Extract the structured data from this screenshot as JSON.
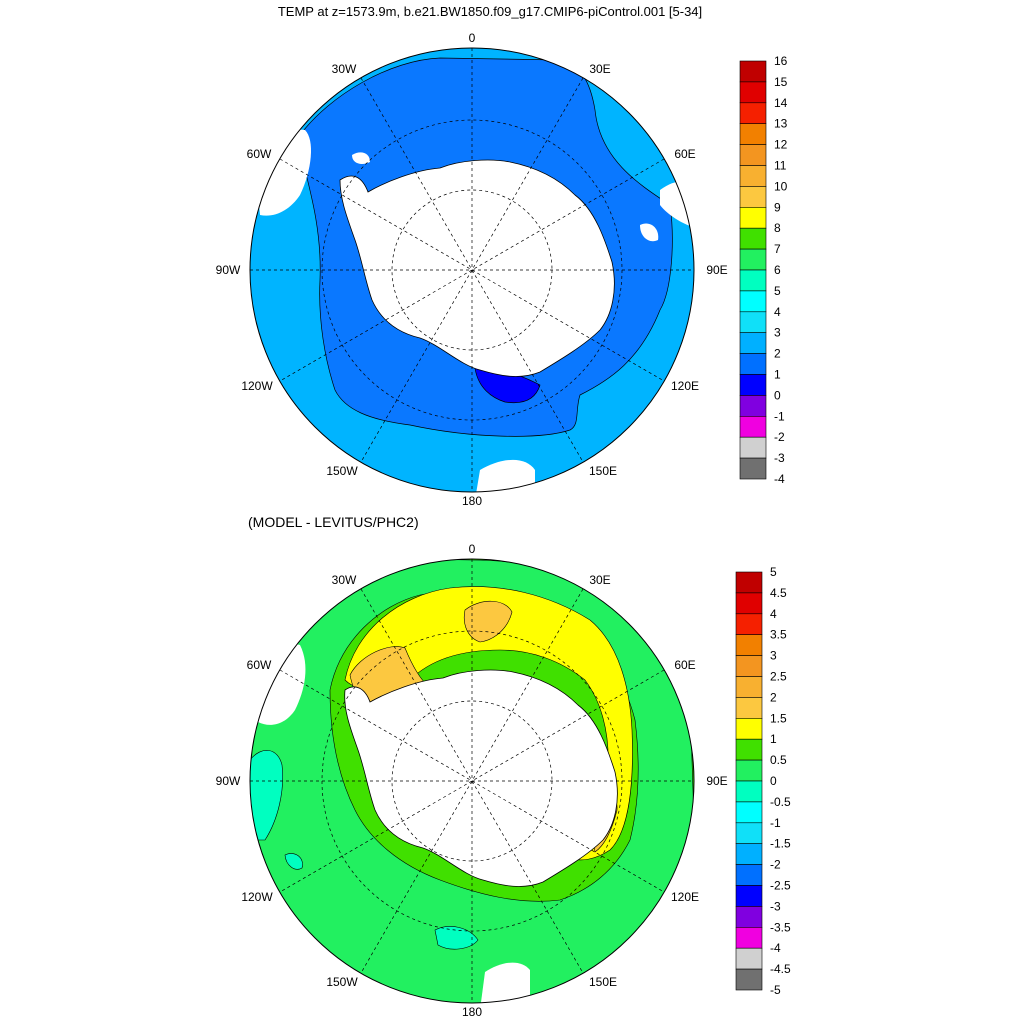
{
  "top_panel": {
    "title": "TEMP at z=1573.9m, b.e21.BW1850.f09_g17.CMIP6-piControl.001 [5-34]",
    "lon_labels": {
      "n": "0",
      "nne": "30E",
      "ene": "60E",
      "e": "90E",
      "ese": "120E",
      "sse": "150E",
      "s": "180",
      "ssw": "150W",
      "wsw": "120W",
      "w": "90W",
      "wnw": "60W",
      "nnw": "30W"
    },
    "colorbar": {
      "levels": [
        "16",
        "15",
        "14",
        "13",
        "12",
        "11",
        "10",
        "9",
        "8",
        "7",
        "6",
        "5",
        "4",
        "3",
        "2",
        "1",
        "0",
        "-1",
        "-2",
        "-3",
        "-4"
      ],
      "colors": [
        "#c00000",
        "#e00000",
        "#f52000",
        "#f28000",
        "#f39520",
        "#f8b030",
        "#fcc840",
        "#ffff00",
        "#40e000",
        "#22f060",
        "#00ffc0",
        "#00ffff",
        "#10e0f8",
        "#00b0ff",
        "#0070ff",
        "#0000ff",
        "#8000e0",
        "#f000e0",
        "#d0d0d0",
        "#707070"
      ]
    }
  },
  "bottom_panel": {
    "title": "(MODEL - LEVITUS/PHC2)",
    "lon_labels": {
      "n": "0",
      "nne": "30E",
      "ene": "60E",
      "e": "90E",
      "ese": "120E",
      "sse": "150E",
      "s": "180",
      "ssw": "150W",
      "wsw": "120W",
      "w": "90W",
      "wnw": "60W",
      "nnw": "30W"
    },
    "colorbar": {
      "levels": [
        "5",
        "4.5",
        "4",
        "3.5",
        "3",
        "2.5",
        "2",
        "1.5",
        "1",
        "0.5",
        "0",
        "-0.5",
        "-1",
        "-1.5",
        "-2",
        "-2.5",
        "-3",
        "-3.5",
        "-4",
        "-4.5",
        "-5"
      ],
      "colors": [
        "#c00000",
        "#e00000",
        "#f52000",
        "#f28000",
        "#f39520",
        "#f8b030",
        "#fcc840",
        "#ffff00",
        "#40e000",
        "#22f060",
        "#00ffc0",
        "#00ffff",
        "#10e0f8",
        "#00b0ff",
        "#0070ff",
        "#0000ff",
        "#8000e0",
        "#f000e0",
        "#d0d0d0",
        "#707070"
      ]
    }
  },
  "colors": {
    "top_outer": "#00b4ff",
    "top_inner": "#0a78ff",
    "top_blue": "#0000ff",
    "land": "#ffffff",
    "bottom_base": "#40e000",
    "bottom_green": "#22f060",
    "bottom_cyan": "#00ffc0",
    "bottom_yellow": "#ffff00",
    "bottom_gold": "#fcc840"
  }
}
